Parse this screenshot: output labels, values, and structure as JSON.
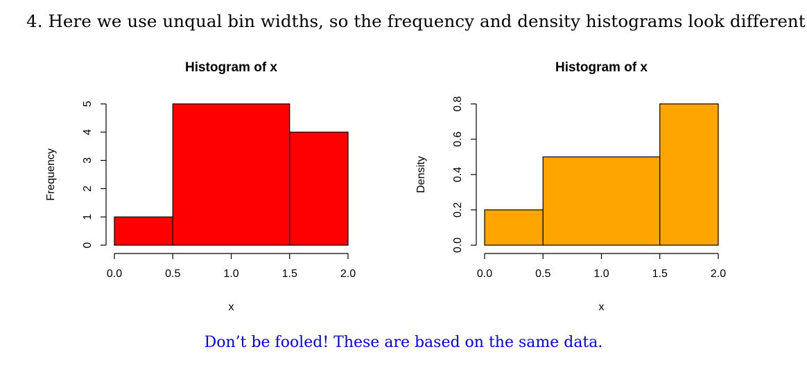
{
  "heading": "4.  Here we use unqual bin widths, so the frequency and density histograms look different",
  "footnote": "Don’t be fooled! These are based on the same data.",
  "chart_data": [
    {
      "type": "bar",
      "title": "Histogram of x",
      "xlabel": "x",
      "ylabel": "Frequency",
      "bins": [
        [
          0.0,
          0.5
        ],
        [
          0.5,
          1.5
        ],
        [
          1.5,
          2.0
        ]
      ],
      "values": [
        1,
        5,
        4
      ],
      "xlim": [
        0.0,
        2.0
      ],
      "ylim": [
        0,
        5
      ],
      "xticks": [
        "0.0",
        "0.5",
        "1.0",
        "1.5",
        "2.0"
      ],
      "yticks": [
        "0",
        "1",
        "2",
        "3",
        "4",
        "5"
      ],
      "color": "#ff0000",
      "grid": false
    },
    {
      "type": "bar",
      "title": "Histogram of x",
      "xlabel": "x",
      "ylabel": "Density",
      "bins": [
        [
          0.0,
          0.5
        ],
        [
          0.5,
          1.5
        ],
        [
          1.5,
          2.0
        ]
      ],
      "values": [
        0.2,
        0.5,
        0.8
      ],
      "xlim": [
        0.0,
        2.0
      ],
      "ylim": [
        0.0,
        0.8
      ],
      "xticks": [
        "0.0",
        "0.5",
        "1.0",
        "1.5",
        "2.0"
      ],
      "yticks": [
        "0.0",
        "0.2",
        "0.4",
        "0.6",
        "0.8"
      ],
      "color": "#ffa500",
      "grid": false
    }
  ]
}
